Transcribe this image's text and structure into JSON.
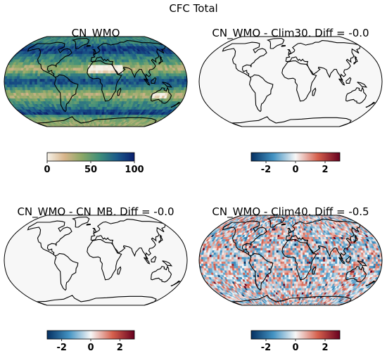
{
  "figure": {
    "title": "CFC Total"
  },
  "chart_data": [
    {
      "type": "heatmap",
      "title": "CN_WMO",
      "projection": "robinson",
      "colormap": "gist_earth_r",
      "colorbar": {
        "min": 0,
        "max": 100,
        "ticks": [
          0,
          50,
          100
        ],
        "tick_labels": [
          "0",
          "50",
          "100"
        ]
      },
      "colors": [
        "#f5f1e8",
        "#d8b58b",
        "#8aa866",
        "#3f8f7a",
        "#1b5a8a",
        "#0a1f6e"
      ],
      "coastline_color": "#000000",
      "field": "full"
    },
    {
      "type": "heatmap",
      "title": "CN_WMO - Clim30, Diff = -0.0",
      "projection": "robinson",
      "colormap": "RdBu_r",
      "colorbar": {
        "min": -3,
        "max": 3,
        "ticks": [
          -2,
          0,
          2
        ],
        "tick_labels": [
          "-2",
          "0",
          "2"
        ]
      },
      "colors": [
        "#053061",
        "#4393c3",
        "#f7f7f7",
        "#d6604d",
        "#67001f"
      ],
      "coastline_color": "#000000",
      "field": "zero"
    },
    {
      "type": "heatmap",
      "title": "CN_WMO - CN_MB, Diff = -0.0",
      "projection": "robinson",
      "colormap": "RdBu_r",
      "colorbar": {
        "min": -3,
        "max": 3,
        "ticks": [
          -2,
          0,
          2
        ],
        "tick_labels": [
          "-2",
          "0",
          "2"
        ]
      },
      "colors": [
        "#053061",
        "#4393c3",
        "#f7f7f7",
        "#d6604d",
        "#67001f"
      ],
      "coastline_color": "#000000",
      "field": "zero"
    },
    {
      "type": "heatmap",
      "title": "CN_WMO - Clim40, Diff = -0.5",
      "projection": "robinson",
      "colormap": "RdBu_r",
      "colorbar": {
        "min": -3,
        "max": 3,
        "ticks": [
          -2,
          0,
          2
        ],
        "tick_labels": [
          "-2",
          "0",
          "2"
        ]
      },
      "colors": [
        "#053061",
        "#4393c3",
        "#f7f7f7",
        "#d6604d",
        "#67001f"
      ],
      "coastline_color": "#000000",
      "field": "noisy"
    }
  ]
}
